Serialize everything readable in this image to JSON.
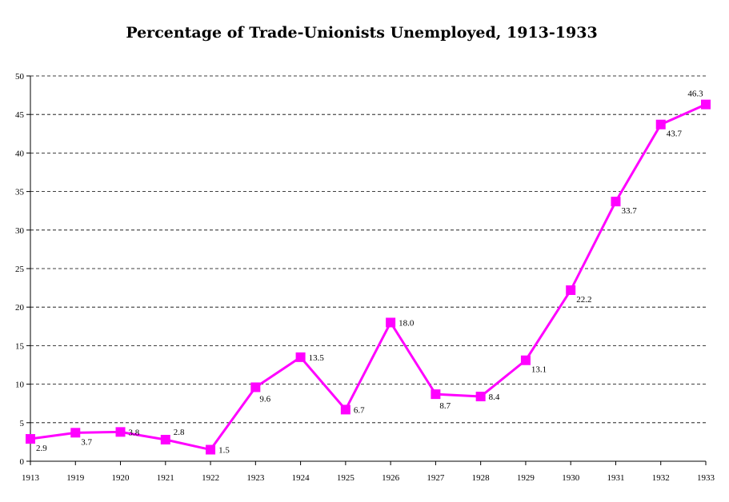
{
  "chart_data": {
    "type": "line",
    "title": "Percentage of Trade-Unionists Unemployed, 1913-1933",
    "xlabel": "",
    "ylabel": "",
    "categories": [
      "1913",
      "1919",
      "1920",
      "1921",
      "1922",
      "1923",
      "1924",
      "1925",
      "1926",
      "1927",
      "1928",
      "1929",
      "1930",
      "1931",
      "1932",
      "1933"
    ],
    "series": [
      {
        "values": [
          2.9,
          3.7,
          3.8,
          2.8,
          1.5,
          9.6,
          13.5,
          6.7,
          18.0,
          8.7,
          8.4,
          13.1,
          22.2,
          33.7,
          43.7,
          46.3
        ],
        "data_labels": [
          "2.9",
          "3.7",
          "3.8",
          "2.8",
          "1.5",
          "9.6",
          "13.5",
          "6.7",
          "18.0",
          "8.7",
          "8.4",
          "13.1",
          "22.2",
          "33.7",
          "43.7",
          "46.3"
        ]
      }
    ],
    "ylim": [
      0,
      50
    ],
    "yticks": [
      0,
      5,
      10,
      15,
      20,
      25,
      30,
      35,
      40,
      45,
      50
    ],
    "grid": true,
    "legend": "none",
    "line_color": "#ff00ff"
  }
}
